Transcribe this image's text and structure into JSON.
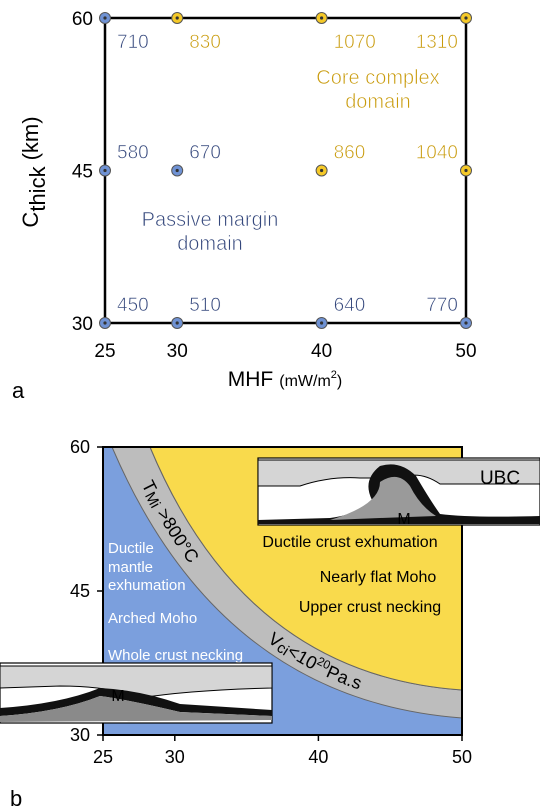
{
  "chart_data": [
    {
      "type": "scatter",
      "panel_label": "a",
      "xlim": [
        25,
        50
      ],
      "ylim": [
        30,
        60
      ],
      "xticks": [
        25,
        30,
        40,
        50
      ],
      "yticks": [
        30,
        45,
        60
      ],
      "xlabel": [
        "MHF",
        "(mW/m",
        "2",
        ")"
      ],
      "ylabel": [
        "C",
        "thick",
        "(km)"
      ],
      "series": [
        {
          "color": "#6f92d4",
          "label_color": "#34477c",
          "x": [
            25,
            25,
            30,
            25,
            30,
            40,
            50
          ],
          "y": [
            60,
            45,
            45,
            30,
            30,
            30,
            30
          ],
          "values": [
            710,
            580,
            670,
            450,
            510,
            640,
            770
          ]
        },
        {
          "color": "#f5c928",
          "label_color": "#c99b0c",
          "x": [
            30,
            40,
            50,
            40,
            50
          ],
          "y": [
            60,
            60,
            60,
            45,
            45
          ],
          "values": [
            830,
            1070,
            1310,
            860,
            1040
          ]
        }
      ],
      "annotations": [
        {
          "lines": [
            "Core complex",
            "domain"
          ],
          "color": "#c99b0c"
        },
        {
          "lines": [
            "Passive margin",
            "domain"
          ],
          "color": "#34477c"
        }
      ]
    },
    {
      "type": "domains",
      "panel_label": "b",
      "xlim": [
        25,
        50
      ],
      "ylim": [
        30,
        60
      ],
      "xticks": [
        25,
        30,
        40,
        50
      ],
      "yticks": [
        30,
        45,
        60
      ],
      "colors": {
        "passive": "#7b9fdd",
        "core": "#f9da4c",
        "band": "#bdbdbd"
      },
      "band_labels": [
        [
          "T",
          "Mi",
          ">800°C"
        ],
        [
          "V",
          "ci",
          "<10",
          "20",
          "Pa.s"
        ]
      ],
      "left_labels": [
        "Ductile",
        "mantle",
        "exhumation",
        "Arched Moho",
        "Whole crust necking"
      ],
      "right_labels": [
        "Ductile crust exhumation",
        "Nearly flat Moho",
        "Upper crust necking"
      ],
      "inset_labels": [
        "UBC",
        "M",
        "M"
      ]
    }
  ]
}
